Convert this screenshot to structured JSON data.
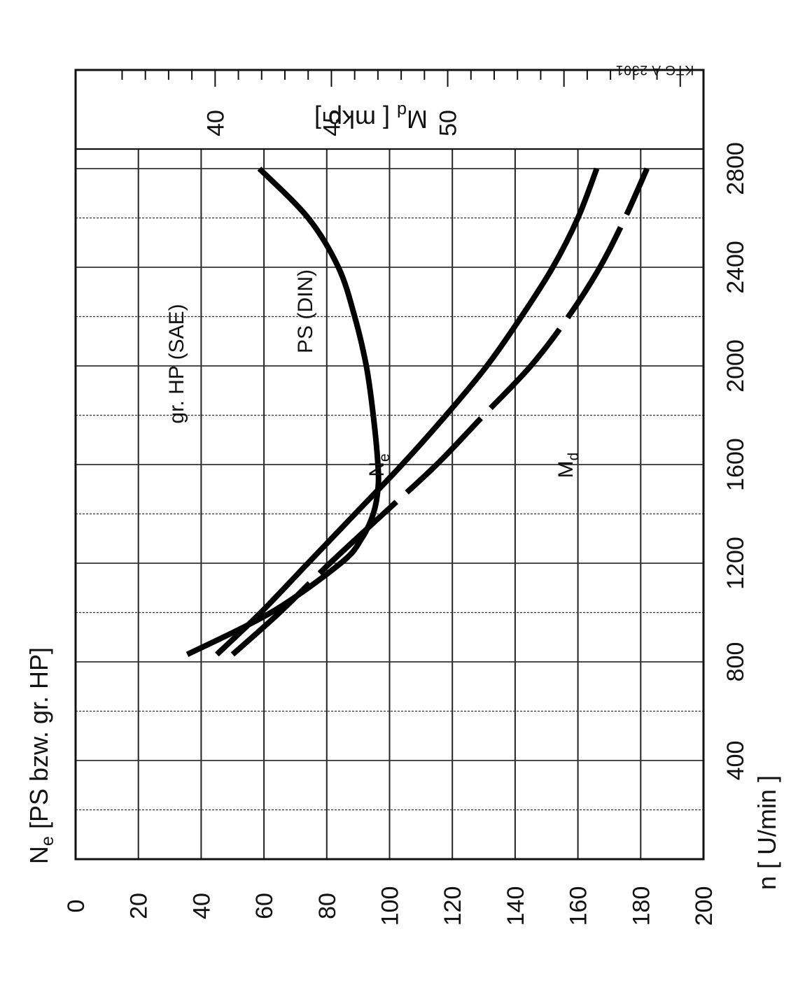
{
  "chart_data": {
    "type": "line",
    "ylabel": "N_e [PS bzw. gr. HP]",
    "ylabel_main": "N",
    "ylabel_sub": "e",
    "ylabel_rest": " [PS bzw. gr. HP]",
    "xlabel": "n [ U/min ]",
    "secondary_axis_label_main": "M",
    "secondary_axis_label_sub": "d",
    "secondary_axis_label_rest": " [ mkp ]",
    "drawing_code": "KTG A 2301",
    "xlim": [
      0,
      3200
    ],
    "ylim": [
      0,
      200
    ],
    "secondary_ylim": [
      34,
      61
    ],
    "x_ticks": [
      400,
      800,
      1200,
      1600,
      2000,
      2400,
      2800
    ],
    "y_ticks": [
      0,
      20,
      40,
      60,
      80,
      100,
      120,
      140,
      160,
      180,
      200
    ],
    "secondary_ticks": [
      40,
      45,
      50
    ],
    "grid": true,
    "series": [
      {
        "name": "gr. HP (SAE)",
        "axis": "primary",
        "style": "dashed",
        "x": [
          830,
          1000,
          1200,
          1400,
          1600,
          1800,
          2000,
          2200,
          2400,
          2600,
          2800
        ],
        "values": [
          50,
          65,
          81,
          98,
          115,
          130,
          145,
          157,
          167,
          175,
          182
        ]
      },
      {
        "name": "PS (DIN)",
        "axis": "primary",
        "style": "solid",
        "x": [
          830,
          1000,
          1200,
          1400,
          1600,
          1800,
          2000,
          2200,
          2400,
          2600,
          2800
        ],
        "values": [
          45,
          59,
          74,
          89,
          104,
          118,
          131,
          142,
          152,
          160,
          166
        ]
      },
      {
        "name": "M_d",
        "axis": "secondary",
        "style": "solid",
        "x": [
          830,
          1000,
          1200,
          1300,
          1400,
          1500,
          1600,
          1800,
          2000,
          2200,
          2400,
          2600,
          2800
        ],
        "values": [
          38.8,
          42.4,
          45.4,
          46.3,
          46.8,
          47.0,
          47.0,
          46.8,
          46.5,
          46.0,
          45.3,
          44.0,
          41.9
        ]
      }
    ],
    "annotations": {
      "sae_label": "gr. HP (SAE)",
      "din_label": "PS (DIN)",
      "ne_label_main": "N",
      "ne_label_sub": "e",
      "md_label_main": "M",
      "md_label_sub": "d"
    }
  }
}
